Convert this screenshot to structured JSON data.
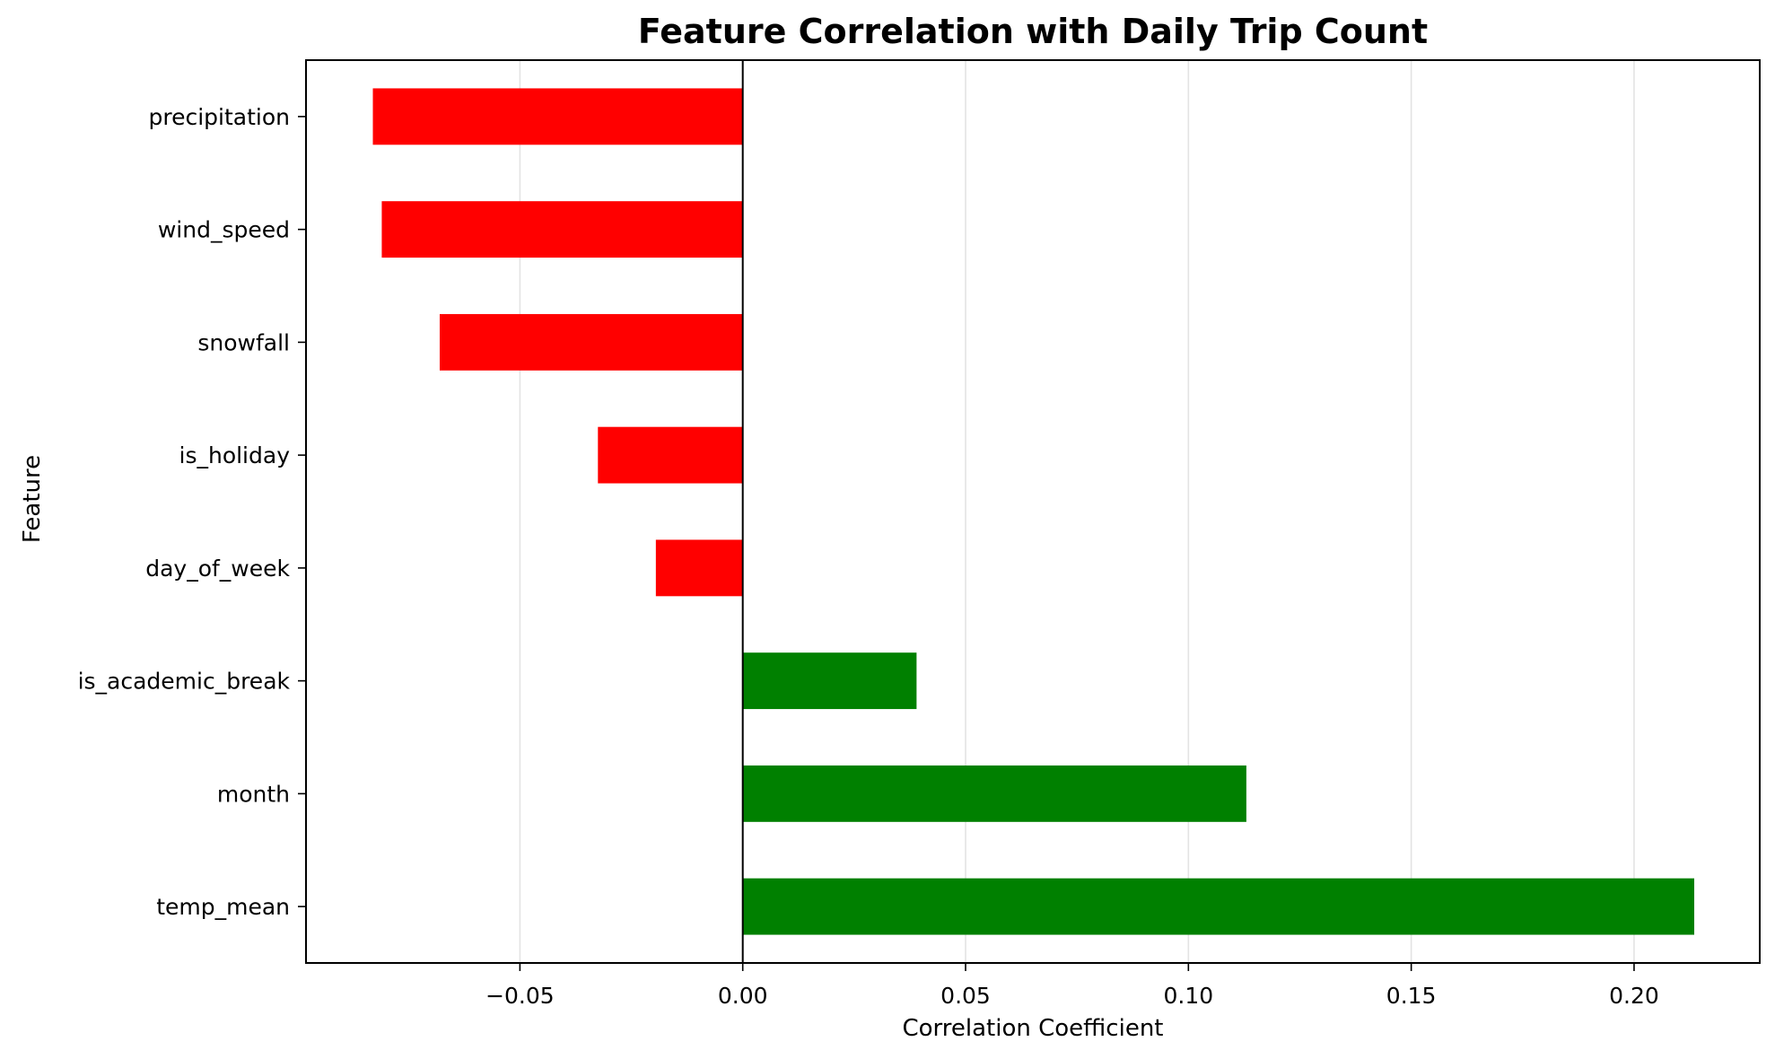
{
  "chart_data": {
    "type": "bar",
    "orientation": "horizontal",
    "title": "Feature Correlation with Daily Trip Count",
    "xlabel": "Correlation Coefficient",
    "ylabel": "Feature",
    "categories": [
      "precipitation",
      "wind_speed",
      "snowfall",
      "is_holiday",
      "day_of_week",
      "is_academic_break",
      "month",
      "temp_mean"
    ],
    "values": [
      -0.083,
      -0.081,
      -0.068,
      -0.0325,
      -0.0195,
      0.039,
      0.113,
      0.2135
    ],
    "xlim": [
      -0.098,
      0.2282
    ],
    "xticks": [
      -0.05,
      0.0,
      0.05,
      0.1,
      0.15,
      0.2
    ],
    "xtick_labels": [
      "−0.05",
      "0.00",
      "0.05",
      "0.10",
      "0.15",
      "0.20"
    ],
    "grid": "x",
    "colors": {
      "negative": "#ff0000",
      "positive": "#008000"
    }
  }
}
